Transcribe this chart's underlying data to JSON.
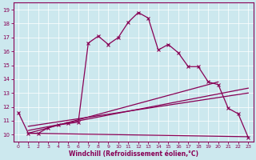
{
  "xlabel": "Windchill (Refroidissement éolien,°C)",
  "xlim": [
    -0.5,
    23.5
  ],
  "ylim": [
    9.5,
    19.5
  ],
  "yticks": [
    10,
    11,
    12,
    13,
    14,
    15,
    16,
    17,
    18,
    19
  ],
  "xticks": [
    0,
    1,
    2,
    3,
    4,
    5,
    6,
    7,
    8,
    9,
    10,
    11,
    12,
    13,
    14,
    15,
    16,
    17,
    18,
    19,
    20,
    21,
    22,
    23
  ],
  "bg_color": "#cce8ee",
  "line_color": "#880055",
  "series1_x": [
    0,
    1,
    2,
    3,
    4,
    5,
    6,
    7,
    8,
    9,
    10,
    11,
    12,
    13,
    14,
    15,
    16,
    17,
    18,
    19,
    20,
    21,
    22,
    23
  ],
  "series1_y": [
    11.6,
    10.1,
    10.1,
    10.5,
    10.7,
    10.8,
    10.9,
    16.6,
    17.1,
    16.5,
    17.0,
    18.1,
    18.8,
    18.4,
    16.1,
    16.5,
    15.9,
    14.9,
    14.9,
    13.8,
    13.6,
    11.9,
    11.5,
    9.8
  ],
  "series2_x": [
    1,
    20
  ],
  "series2_y": [
    10.1,
    13.8
  ],
  "series3_x": [
    1,
    23
  ],
  "series3_y": [
    10.3,
    13.35
  ],
  "series4_x": [
    1,
    23
  ],
  "series4_y": [
    10.6,
    13.0
  ],
  "series5_x": [
    1,
    23
  ],
  "series5_y": [
    10.1,
    9.85
  ]
}
